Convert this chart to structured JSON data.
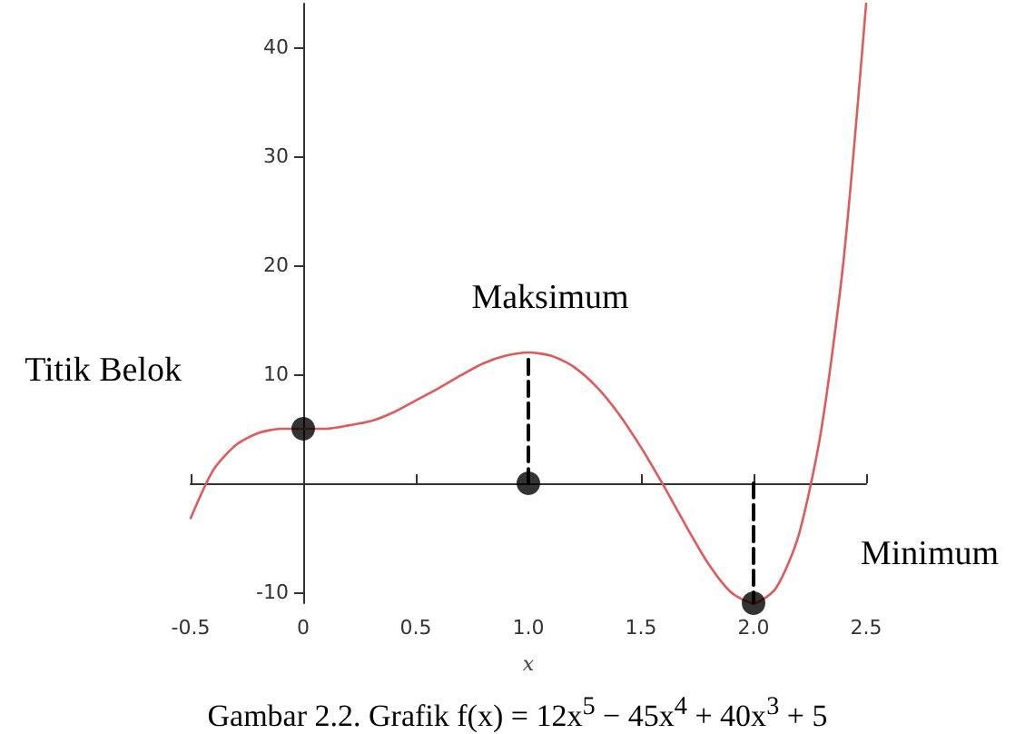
{
  "chart_data": {
    "type": "line",
    "xlabel": "x",
    "xlim": [
      -0.5,
      2.5
    ],
    "ylim": [
      -11,
      44
    ],
    "xticks": [
      -0.5,
      0,
      0.5,
      {
        "value": 1,
        "label": "1.0"
      },
      1.5,
      {
        "value": 2,
        "label": "2.0"
      },
      2.5
    ],
    "yticks": [
      -10,
      10,
      20,
      30,
      40
    ],
    "grid": false,
    "series": [
      {
        "color": "#e05a5a",
        "marker": "none",
        "line_style": "solid",
        "x": [
          -0.5,
          -0.4,
          -0.3,
          -0.2,
          -0.1,
          0,
          0.1,
          0.2,
          0.3,
          0.4,
          0.5,
          0.6,
          0.7,
          0.8,
          0.9,
          1,
          1.1,
          1.2,
          1.3,
          1.4,
          1.5,
          1.6,
          1.7,
          1.8,
          1.9,
          2,
          2.1,
          2.2,
          2.3,
          2.4,
          2.5
        ],
        "values": [
          -3.2,
          1.2,
          3.5,
          4.6,
          5,
          5,
          5,
          5.3,
          5.7,
          6.5,
          7.6,
          8.7,
          9.9,
          11,
          11.7,
          12,
          11.7,
          10.7,
          8.9,
          6.4,
          3.3,
          -0.2,
          -3.9,
          -7.4,
          -10,
          -11,
          -9.6,
          -4.8,
          4.8,
          20.5,
          44
        ]
      },
      {
        "type": "line",
        "color": "#000000",
        "marker": "none",
        "line_style": "dashed",
        "x": [
          1,
          1
        ],
        "values": [
          0,
          12
        ]
      },
      {
        "type": "line",
        "color": "#000000",
        "marker": "none",
        "line_style": "dashed",
        "x": [
          2,
          2
        ],
        "values": [
          0,
          -11
        ]
      },
      {
        "type": "scatter",
        "color": "#000000",
        "marker": "circle",
        "x": [
          0,
          1,
          2
        ],
        "values": [
          5,
          0,
          -11
        ]
      }
    ],
    "annotations": [
      "Titik Belok",
      "Maksimum",
      "Minimum",
      "Gambar 2.2. Grafik f(x) = 12x$^{5}$ − 45x$^{4}$ + 40x$^{3}$ + 5"
    ]
  }
}
